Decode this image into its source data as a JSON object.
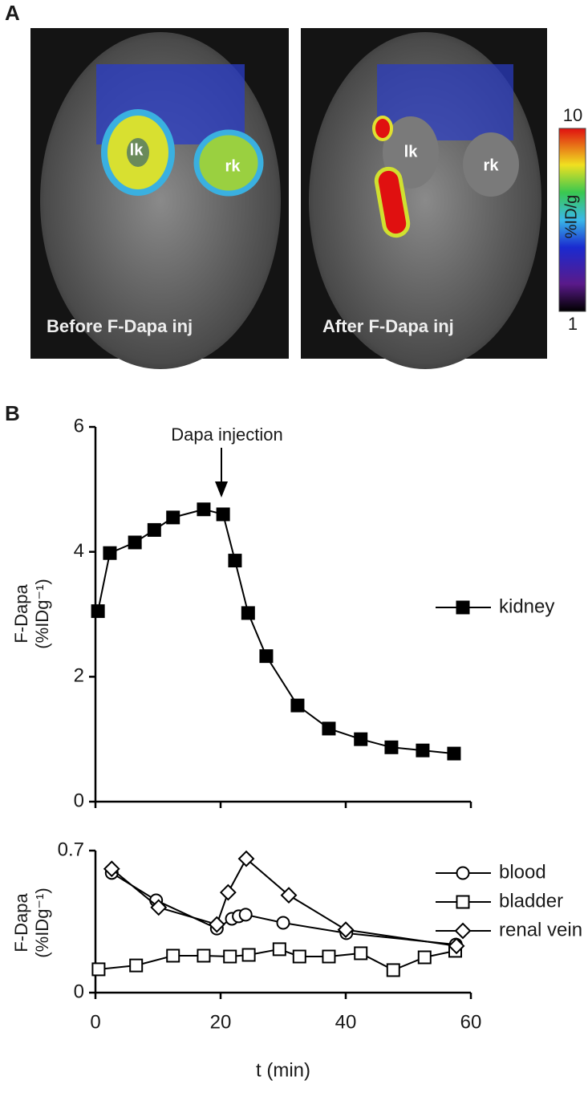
{
  "panel_a": {
    "label": "A",
    "images": [
      {
        "caption": "Before F-Dapa inj",
        "left_label": "lk",
        "right_label": "rk"
      },
      {
        "caption": "After F-Dapa inj",
        "left_label": "lk",
        "right_label": "rk"
      }
    ],
    "colorbar": {
      "title": "%ID/g",
      "max": 10,
      "min": 1
    }
  },
  "panel_b_label": "B",
  "chart_data": [
    {
      "type": "line",
      "ylabel": [
        "F-Dapa",
        "(%IDg⁻¹)"
      ],
      "annotation": "Dapa injection",
      "xlim": [
        0,
        60
      ],
      "xticks": [
        0,
        20,
        40,
        60
      ],
      "ylim": [
        0,
        6
      ],
      "yticks": [
        0,
        2,
        4,
        6
      ],
      "series": [
        {
          "name": "kidney",
          "color": "#000000",
          "marker": "square",
          "filled": true,
          "x": [
            0.4,
            2.3,
            6.3,
            9.4,
            12.4,
            17.3,
            20.4,
            22.3,
            24.4,
            27.3,
            32.3,
            37.3,
            42.4,
            47.3,
            52.3,
            57.3
          ],
          "values": [
            3.05,
            3.98,
            4.15,
            4.35,
            4.55,
            4.68,
            4.6,
            3.86,
            3.02,
            2.33,
            1.54,
            1.17,
            1.0,
            0.87,
            0.82,
            0.77
          ]
        }
      ]
    },
    {
      "type": "line",
      "ylabel": [
        "F-Dapa",
        "(%IDg⁻¹)"
      ],
      "xlabel": "t (min)",
      "xlim": [
        0,
        60
      ],
      "xticks": [
        0,
        20,
        40,
        60
      ],
      "ylim": [
        0,
        0.7
      ],
      "yticks": [
        0,
        0.7
      ],
      "series": [
        {
          "name": "blood",
          "color": "#000000",
          "marker": "circle",
          "filled": false,
          "x": [
            2.6,
            9.7,
            19.4,
            21.8,
            22.9,
            24.0,
            30.0,
            40.1,
            57.6
          ],
          "values": [
            0.59,
            0.455,
            0.316,
            0.364,
            0.376,
            0.384,
            0.344,
            0.293,
            0.237
          ]
        },
        {
          "name": "bladder",
          "color": "#000000",
          "marker": "square",
          "filled": false,
          "x": [
            0.5,
            6.5,
            12.4,
            17.3,
            21.5,
            24.5,
            29.4,
            32.6,
            37.3,
            42.4,
            47.6,
            52.6,
            57.5
          ],
          "values": [
            0.115,
            0.134,
            0.182,
            0.182,
            0.178,
            0.186,
            0.214,
            0.178,
            0.178,
            0.194,
            0.111,
            0.174,
            0.206
          ]
        },
        {
          "name": "renal vein",
          "color": "#000000",
          "marker": "diamond",
          "filled": false,
          "x": [
            2.6,
            10.1,
            19.4,
            21.2,
            24.1,
            30.9,
            40.0,
            57.7
          ],
          "values": [
            0.61,
            0.42,
            0.336,
            0.494,
            0.66,
            0.48,
            0.31,
            0.23
          ]
        }
      ]
    }
  ]
}
